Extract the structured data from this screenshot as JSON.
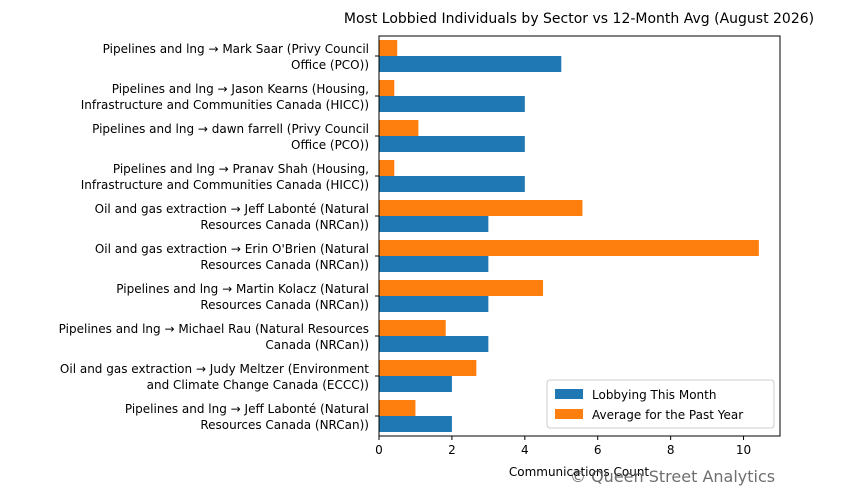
{
  "chart_data": {
    "type": "bar",
    "orientation": "horizontal",
    "title": "Most Lobbied Individuals by Sector vs 12-Month Avg (August 2026)",
    "xlabel": "Communications Count",
    "ylabel": "",
    "xlim": [
      0,
      11
    ],
    "xticks": [
      "0",
      "2",
      "4",
      "6",
      "8",
      "10"
    ],
    "legend_position": "lower-right",
    "grid": false,
    "categories": [
      [
        "Pipelines and lng → Mark Saar (Privy Council",
        "Office (PCO))"
      ],
      [
        "Pipelines and lng → Jason  Kearns (Housing,",
        "Infrastructure and Communities Canada (HICC))"
      ],
      [
        "Pipelines and lng → dawn farrell (Privy Council",
        "Office (PCO))"
      ],
      [
        "Pipelines and lng → Pranav Shah (Housing,",
        "Infrastructure and Communities Canada (HICC))"
      ],
      [
        "Oil and gas extraction → Jeff Labonté (Natural",
        "Resources Canada (NRCan))"
      ],
      [
        "Oil and gas extraction → Erin O'Brien (Natural",
        "Resources Canada (NRCan))"
      ],
      [
        "Pipelines and lng → Martin Kolacz (Natural",
        "Resources Canada (NRCan))"
      ],
      [
        "Pipelines and lng → Michael Rau (Natural Resources",
        "Canada (NRCan))"
      ],
      [
        "Oil and gas extraction → Judy Meltzer (Environment",
        "and Climate Change Canada (ECCC))"
      ],
      [
        "Pipelines and lng → Jeff Labonté (Natural",
        "Resources Canada (NRCan))"
      ]
    ],
    "series": [
      {
        "name": "Lobbying This Month",
        "color": "#1f77b4",
        "values": [
          5,
          4,
          4,
          4,
          3,
          3,
          3,
          3,
          2,
          2
        ]
      },
      {
        "name": "Average for the Past Year",
        "color": "#ff7f0e",
        "values": [
          0.5,
          0.42,
          1.08,
          0.42,
          5.58,
          10.42,
          4.5,
          1.83,
          2.67,
          1.0
        ]
      }
    ]
  },
  "watermark": "© Queen Street Analytics"
}
